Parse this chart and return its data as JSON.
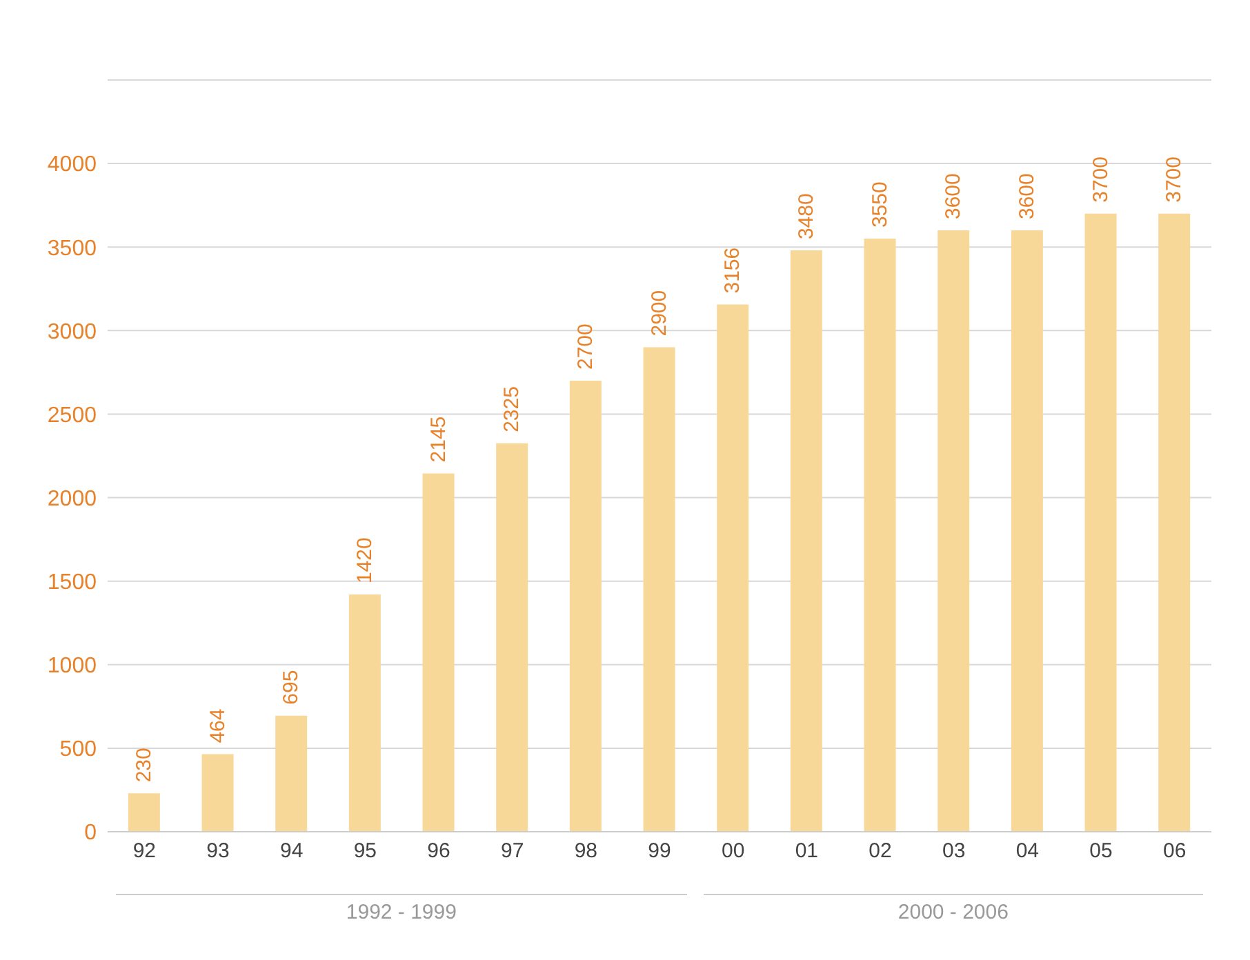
{
  "chart_data": {
    "type": "bar",
    "categories": [
      "92",
      "93",
      "94",
      "95",
      "96",
      "97",
      "98",
      "99",
      "00",
      "01",
      "02",
      "03",
      "04",
      "05",
      "06"
    ],
    "values": [
      230,
      464,
      695,
      1420,
      2145,
      2325,
      2700,
      2900,
      3156,
      3480,
      3550,
      3600,
      3600,
      3700,
      3700
    ],
    "color": "#f8d898",
    "ylim": [
      0,
      4500
    ],
    "yticks": [
      0,
      500,
      1000,
      1500,
      2000,
      2500,
      3000,
      3500,
      4000
    ],
    "grid": "y",
    "data_labels": true,
    "annotations": [
      "1992 - 1999",
      "2000 - 2006"
    ]
  }
}
